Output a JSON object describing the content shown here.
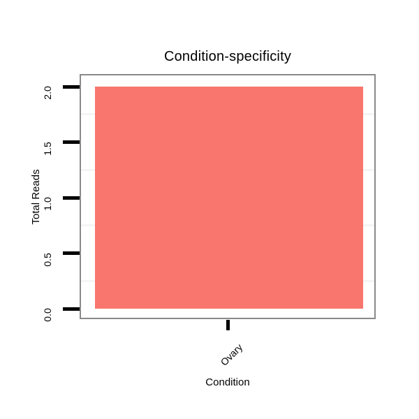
{
  "chart_data": {
    "type": "bar",
    "title": "Condition-specificity",
    "xlabel": "Condition",
    "ylabel": "Total Reads",
    "categories": [
      "Ovary"
    ],
    "values": [
      2
    ],
    "ylim": [
      0,
      2
    ],
    "ytick_values": [
      0,
      0.5,
      1,
      1.5,
      2
    ],
    "ytick_labels": [
      "0.0",
      "0.5",
      "1.0",
      "1.5",
      "2.0"
    ],
    "minor_grid_values": [
      0.25,
      0.75,
      1.25,
      1.75
    ],
    "grid": "minor horizontal only, very faint",
    "legend": "none",
    "tick_label_orientation": "y labels rotated 90, x labels rotated 45",
    "colors": {
      "bar_fill": "#F8766D",
      "panel_border": "#898989",
      "tick": "#000000",
      "minor_grid": "#F5F5F5",
      "background": "#FFFFFF",
      "text": "#000000"
    }
  }
}
